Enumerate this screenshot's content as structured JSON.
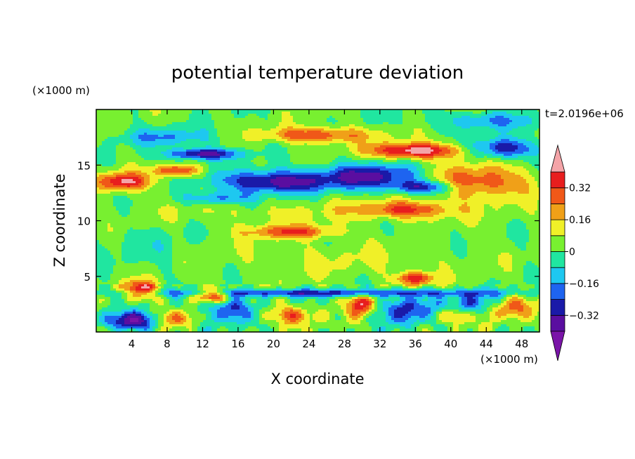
{
  "chart_data": {
    "type": "heatmap",
    "title": "potential temperature deviation",
    "xlabel": "X coordinate",
    "ylabel": "Z coordinate",
    "x_unit_label": "(×1000 m)",
    "y_unit_label": "(×1000 m)",
    "time_label": "t=2.0196e+06",
    "xlim": [
      0,
      50
    ],
    "ylim": [
      0,
      20
    ],
    "x_ticks": [
      4,
      8,
      12,
      16,
      20,
      24,
      28,
      32,
      36,
      40,
      44,
      48
    ],
    "x_tick_labels": [
      "4",
      "8",
      "12",
      "16",
      "20",
      "24",
      "28",
      "32",
      "36",
      "40",
      "44",
      "48"
    ],
    "y_ticks": [
      5,
      10,
      15
    ],
    "y_tick_labels": [
      "5",
      "10",
      "15"
    ],
    "colorbar": {
      "levels": [
        -0.4,
        -0.32,
        -0.24,
        -0.16,
        -0.08,
        0,
        0.08,
        0.16,
        0.24,
        0.32,
        0.4
      ],
      "tick_values": [
        0.32,
        0.16,
        0,
        -0.16,
        -0.32
      ],
      "tick_labels": [
        "0.32",
        "0.16",
        "0",
        "−0.16",
        "−0.32"
      ],
      "colors": [
        "#5a0ea0",
        "#1a1aa8",
        "#1e64f0",
        "#1ec8f0",
        "#20e6a0",
        "#78f030",
        "#f0f028",
        "#f0a018",
        "#f05818",
        "#e81e1e"
      ],
      "over_color": "#f4a4a8",
      "under_color": "#7a14a8"
    },
    "features": [
      {
        "x": 12,
        "z": 16.0,
        "rx": 4,
        "rz": 0.5,
        "v": -0.4
      },
      {
        "x": 20,
        "z": 13.5,
        "rx": 6,
        "rz": 1.0,
        "v": -0.4
      },
      {
        "x": 31,
        "z": 14.0,
        "rx": 6,
        "rz": 1.1,
        "v": -0.36
      },
      {
        "x": 37,
        "z": 13.0,
        "rx": 3.5,
        "rz": 0.6,
        "v": -0.35
      },
      {
        "x": 46,
        "z": 16.5,
        "rx": 3.5,
        "rz": 0.9,
        "v": -0.34
      },
      {
        "x": 25,
        "z": 17.7,
        "rx": 6,
        "rz": 0.7,
        "v": 0.3
      },
      {
        "x": 36,
        "z": 16.3,
        "rx": 5,
        "rz": 0.7,
        "v": 0.46
      },
      {
        "x": 43,
        "z": 13.5,
        "rx": 6,
        "rz": 1.5,
        "v": 0.3
      },
      {
        "x": 3,
        "z": 13.5,
        "rx": 3,
        "rz": 0.8,
        "v": 0.4
      },
      {
        "x": 9,
        "z": 14.5,
        "rx": 2.5,
        "rz": 0.5,
        "v": 0.34
      },
      {
        "x": 22,
        "z": 9.0,
        "rx": 5,
        "rz": 0.6,
        "v": 0.28
      },
      {
        "x": 35,
        "z": 11.0,
        "rx": 5,
        "rz": 0.7,
        "v": 0.28
      },
      {
        "x": 14,
        "z": 12.0,
        "rx": 4,
        "rz": 0.6,
        "v": -0.22
      },
      {
        "x": 8,
        "z": 17.5,
        "rx": 5,
        "rz": 0.8,
        "v": -0.18
      },
      {
        "x": 44,
        "z": 19.0,
        "rx": 6,
        "rz": 0.8,
        "v": -0.18
      },
      {
        "x": 27,
        "z": 6.5,
        "rx": 16,
        "rz": 1.8,
        "v": 0.06
      },
      {
        "x": 25,
        "z": 10.8,
        "rx": 20,
        "rz": 1.2,
        "v": 0.07
      },
      {
        "x": 6,
        "z": 7.5,
        "rx": 5,
        "rz": 2.0,
        "v": -0.06
      },
      {
        "x": 4,
        "z": 1.0,
        "rx": 3,
        "rz": 0.8,
        "v": -0.4
      },
      {
        "x": 15,
        "z": 2.0,
        "rx": 2.5,
        "rz": 1.2,
        "v": -0.3
      },
      {
        "x": 35,
        "z": 2.0,
        "rx": 3,
        "rz": 1.2,
        "v": -0.32
      },
      {
        "x": 43,
        "z": 2.5,
        "rx": 3,
        "rz": 1.0,
        "v": -0.3
      },
      {
        "x": 5,
        "z": 3.8,
        "rx": 2,
        "rz": 0.8,
        "v": 0.4
      },
      {
        "x": 13,
        "z": 3.3,
        "rx": 2,
        "rz": 0.6,
        "v": 0.4
      },
      {
        "x": 30,
        "z": 2.5,
        "rx": 1.5,
        "rz": 1.0,
        "v": 0.38
      },
      {
        "x": 36,
        "z": 4.8,
        "rx": 2,
        "rz": 0.6,
        "v": 0.36
      },
      {
        "x": 46,
        "z": 2.2,
        "rx": 3,
        "rz": 1.0,
        "v": 0.3
      },
      {
        "x": 22,
        "z": 1.5,
        "rx": 3,
        "rz": 0.8,
        "v": 0.24
      },
      {
        "x": 40,
        "z": 1.5,
        "rx": 2,
        "rz": 0.7,
        "v": 0.22
      },
      {
        "x": 9,
        "z": 1.2,
        "rx": 2,
        "rz": 0.7,
        "v": 0.22
      },
      {
        "x": 25,
        "z": 3.5,
        "rx": 22,
        "rz": 0.35,
        "v": -0.3
      }
    ]
  }
}
